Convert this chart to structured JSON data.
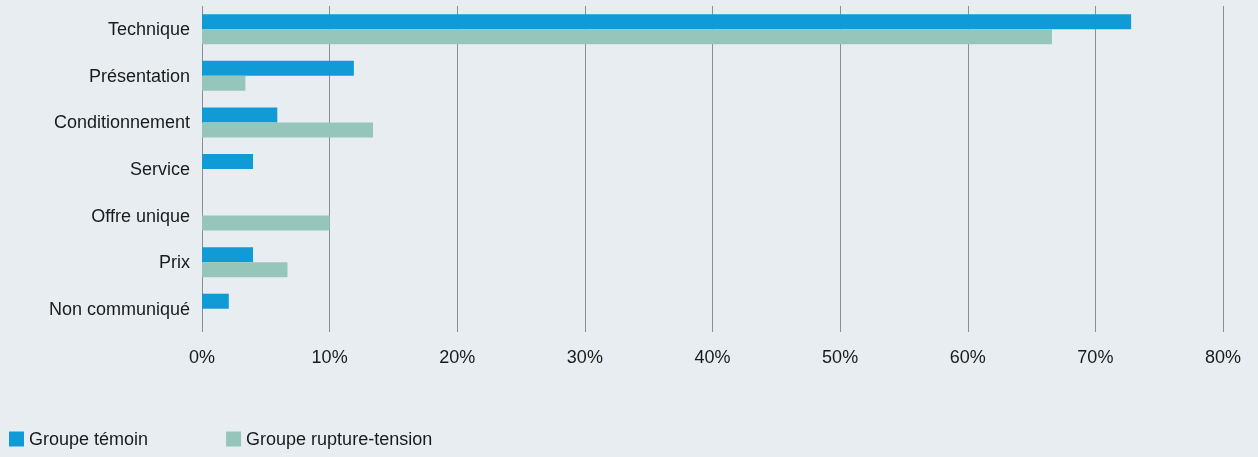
{
  "chart_data": {
    "type": "bar",
    "orientation": "horizontal",
    "categories": [
      "Technique",
      "Présentation",
      "Conditionnement",
      "Service",
      "Offre unique",
      "Prix",
      "Non communiqué"
    ],
    "series": [
      {
        "name": "Groupe témoin",
        "color": "#109ad6",
        "values": [
          72.8,
          11.9,
          5.9,
          4.0,
          null,
          4.0,
          2.1
        ]
      },
      {
        "name": "Groupe rupture-tension",
        "color": "#96c6ba",
        "values": [
          66.6,
          3.4,
          13.4,
          null,
          10.0,
          6.7,
          null
        ]
      }
    ],
    "xlim": [
      0,
      80
    ],
    "xticks": [
      {
        "value": 0,
        "label": "0%"
      },
      {
        "value": 10,
        "label": "10%"
      },
      {
        "value": 20,
        "label": "20%"
      },
      {
        "value": 30,
        "label": "30%"
      },
      {
        "value": 40,
        "label": "40%"
      },
      {
        "value": 50,
        "label": "50%"
      },
      {
        "value": 60,
        "label": "60%"
      },
      {
        "value": 70,
        "label": "70%"
      },
      {
        "value": 80,
        "label": "80%"
      }
    ],
    "grid": "x",
    "legend": "bottom left"
  }
}
